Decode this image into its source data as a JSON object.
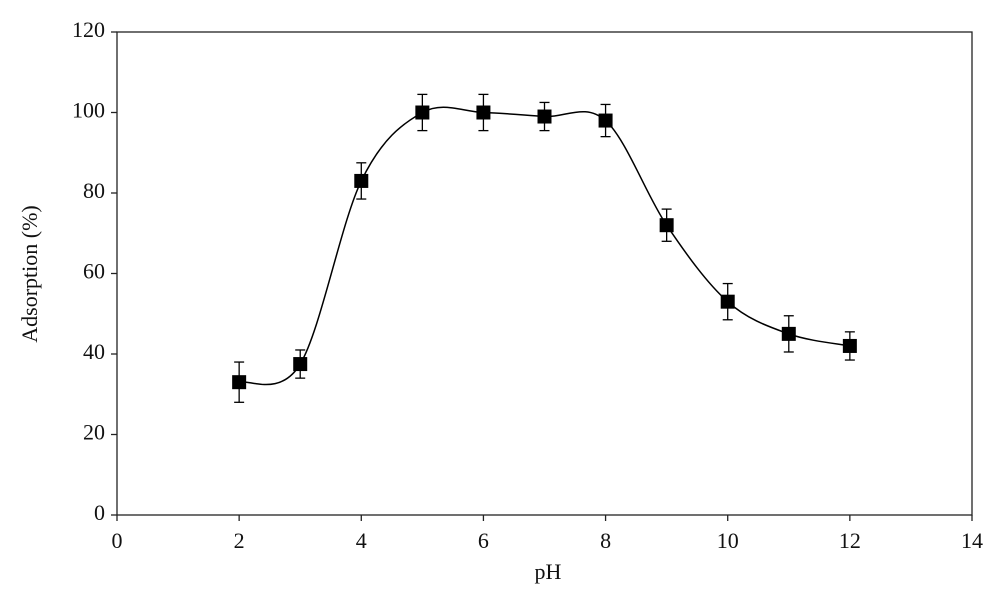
{
  "chart_data": {
    "type": "scatter",
    "x_label": "pH",
    "y_label": "Adsorption (%)",
    "x": [
      2,
      3,
      4,
      5,
      6,
      7,
      8,
      9,
      10,
      11,
      12
    ],
    "values": [
      33,
      37.5,
      83,
      100,
      100,
      99,
      98,
      72,
      53,
      45,
      42
    ],
    "errors": [
      5,
      3.5,
      4.5,
      4.5,
      4.5,
      3.5,
      4,
      4,
      4.5,
      4.5,
      3.5
    ],
    "color": "#000000",
    "xlim": [
      0,
      14
    ],
    "xticks": [
      0,
      2,
      4,
      6,
      8,
      10,
      12,
      14
    ],
    "ylim": [
      0,
      120
    ],
    "yticks": [
      0,
      20,
      40,
      60,
      80,
      100,
      120
    ]
  }
}
